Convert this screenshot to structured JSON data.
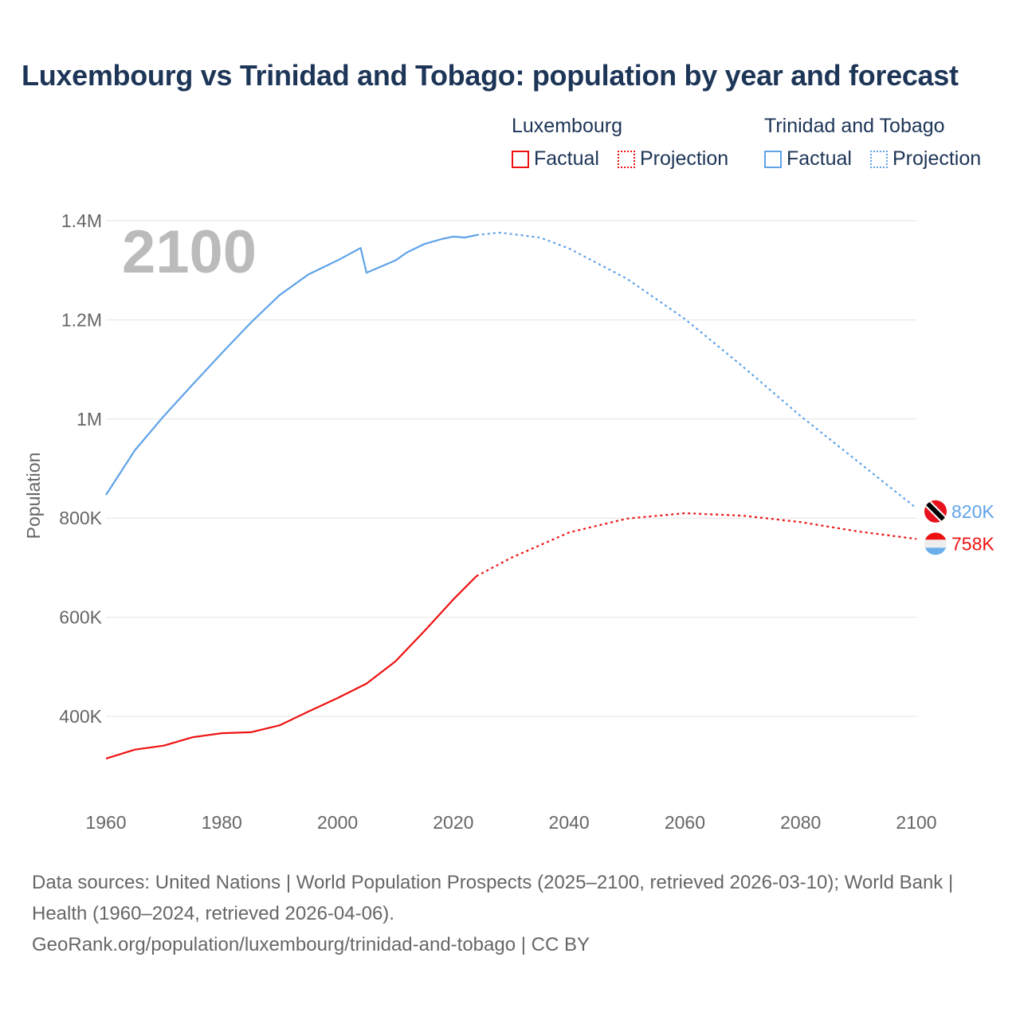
{
  "chart_data": {
    "type": "line",
    "title": "Luxembourg vs Trinidad and Tobago: population by year and forecast",
    "xlabel": "",
    "ylabel": "Population",
    "xlim": [
      1960,
      2100
    ],
    "ylim": [
      230000,
      1400000
    ],
    "x_ticks": [
      "1960",
      "1980",
      "2000",
      "2020",
      "2040",
      "2060",
      "2080",
      "2100"
    ],
    "x_tick_values": [
      1960,
      1980,
      2000,
      2020,
      2040,
      2060,
      2080,
      2100
    ],
    "y_ticks": [
      "1.4M",
      "1.2M",
      "1M",
      "800K",
      "600K",
      "400K"
    ],
    "y_tick_values": [
      1400000,
      1200000,
      1000000,
      800000,
      600000,
      400000
    ],
    "grid": true,
    "year_watermark": "2100",
    "legend": {
      "placement": "top-right",
      "groups": [
        {
          "name": "Luxembourg",
          "factual_label": "Factual",
          "projection_label": "Projection",
          "color": "#ee1111"
        },
        {
          "name": "Trinidad and Tobago",
          "factual_label": "Factual",
          "projection_label": "Projection",
          "color": "#5fa3e8"
        }
      ]
    },
    "series": [
      {
        "name": "Luxembourg",
        "color": "#ee1111",
        "end_label": "758K",
        "factual": {
          "x": [
            1960,
            1965,
            1970,
            1975,
            1980,
            1985,
            1990,
            1995,
            2000,
            2005,
            2010,
            2015,
            2020,
            2024
          ],
          "y": [
            315000,
            333000,
            341000,
            358000,
            366000,
            368000,
            382000,
            410000,
            437000,
            466000,
            511000,
            572000,
            636000,
            683000
          ]
        },
        "projection": {
          "x": [
            2024,
            2030,
            2040,
            2050,
            2060,
            2070,
            2080,
            2090,
            2100
          ],
          "y": [
            683000,
            720000,
            771000,
            799000,
            810000,
            805000,
            792000,
            773000,
            758000
          ]
        }
      },
      {
        "name": "Trinidad and Tobago",
        "color": "#5fa3e8",
        "end_label": "820K",
        "factual": {
          "x": [
            1960,
            1965,
            1970,
            1975,
            1980,
            1985,
            1990,
            1995,
            2000,
            2004,
            2005,
            2008,
            2010,
            2012,
            2015,
            2018,
            2020,
            2022,
            2024
          ],
          "y": [
            847000,
            937000,
            1006000,
            1070000,
            1133000,
            1194000,
            1250000,
            1292000,
            1320000,
            1345000,
            1295000,
            1310000,
            1320000,
            1336000,
            1353000,
            1363000,
            1368000,
            1366000,
            1371000
          ]
        },
        "projection": {
          "x": [
            2024,
            2028,
            2035,
            2040,
            2050,
            2060,
            2070,
            2080,
            2090,
            2100
          ],
          "y": [
            1371000,
            1376000,
            1366000,
            1344000,
            1283000,
            1202000,
            1106000,
            1006000,
            913000,
            820000
          ]
        }
      }
    ]
  },
  "source": {
    "line1": "Data sources: United Nations | World Population Prospects (2025–2100, retrieved 2026-03-10); World Bank | Health (1960–2024, retrieved 2026-04-06).",
    "line2": "GeoRank.org/population/luxembourg/trinidad-and-tobago | CC BY"
  }
}
